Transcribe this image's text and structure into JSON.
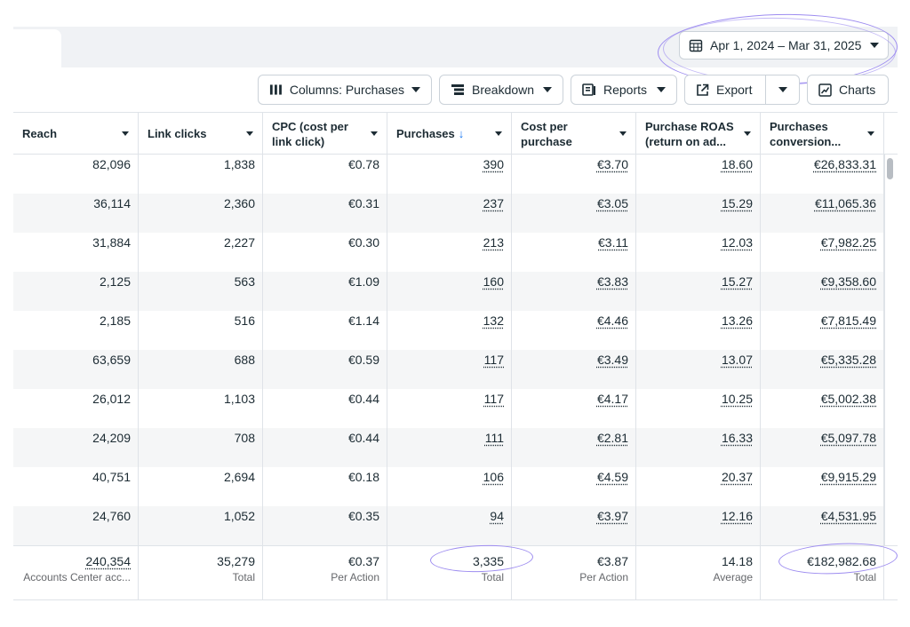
{
  "date_range": {
    "label": "Apr 1, 2024 – Mar 31, 2025",
    "icon": "calendar-icon"
  },
  "toolbar": {
    "columns_label": "Columns: Purchases",
    "breakdown_label": "Breakdown",
    "reports_label": "Reports",
    "export_label": "Export",
    "charts_label": "Charts"
  },
  "columns": [
    {
      "key": "reach",
      "label": "Reach"
    },
    {
      "key": "link_clicks",
      "label": "Link clicks"
    },
    {
      "key": "cpc",
      "label": "CPC (cost per link click)"
    },
    {
      "key": "purchases",
      "label": "Purchases",
      "sort": "↓"
    },
    {
      "key": "cost_per_purchase",
      "label": "Cost per purchase"
    },
    {
      "key": "roas",
      "label": "Purchase ROAS (return on ad..."
    },
    {
      "key": "conv_value",
      "label": "Purchases conversion..."
    }
  ],
  "rows": [
    [
      "82,096",
      "1,838",
      "€0.78",
      "390",
      "€3.70",
      "18.60",
      "€26,833.31"
    ],
    [
      "36,114",
      "2,360",
      "€0.31",
      "237",
      "€3.05",
      "15.29",
      "€11,065.36"
    ],
    [
      "31,884",
      "2,227",
      "€0.30",
      "213",
      "€3.11",
      "12.03",
      "€7,982.25"
    ],
    [
      "2,125",
      "563",
      "€1.09",
      "160",
      "€3.83",
      "15.27",
      "€9,358.60"
    ],
    [
      "2,185",
      "516",
      "€1.14",
      "132",
      "€4.46",
      "13.26",
      "€7,815.49"
    ],
    [
      "63,659",
      "688",
      "€0.59",
      "117",
      "€3.49",
      "13.07",
      "€5,335.28"
    ],
    [
      "26,012",
      "1,103",
      "€0.44",
      "117",
      "€4.17",
      "10.25",
      "€5,002.38"
    ],
    [
      "24,209",
      "708",
      "€0.44",
      "111",
      "€2.81",
      "16.33",
      "€5,097.78"
    ],
    [
      "40,751",
      "2,694",
      "€0.18",
      "106",
      "€4.59",
      "20.37",
      "€9,915.29"
    ],
    [
      "24,760",
      "1,052",
      "€0.35",
      "94",
      "€3.97",
      "12.16",
      "€4,531.95"
    ]
  ],
  "totals": [
    {
      "value": "240,354",
      "label": "Accounts Center acc..."
    },
    {
      "value": "35,279",
      "label": "Total"
    },
    {
      "value": "€0.37",
      "label": "Per Action"
    },
    {
      "value": "3,335",
      "label": "Total"
    },
    {
      "value": "€3.87",
      "label": "Per Action"
    },
    {
      "value": "14.18",
      "label": "Average"
    },
    {
      "value": "€182,982.68",
      "label": "Total"
    }
  ],
  "highlight_color": "#9d8cf0",
  "sort_color": "#1877f2"
}
